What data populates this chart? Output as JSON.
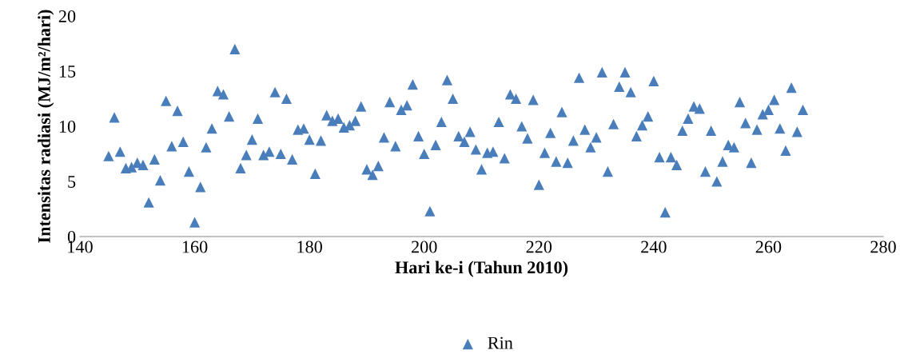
{
  "chart_data": {
    "type": "scatter",
    "xlabel": "Hari ke-i (Tahun 2010)",
    "ylabel": "Intensitas radiasi (MJ/m²/hari)",
    "x": [
      145,
      146,
      147,
      148,
      149,
      150,
      151,
      152,
      153,
      154,
      155,
      156,
      157,
      158,
      159,
      160,
      161,
      162,
      163,
      164,
      165,
      166,
      167,
      168,
      169,
      170,
      171,
      172,
      173,
      174,
      175,
      176,
      177,
      178,
      179,
      180,
      181,
      182,
      183,
      184,
      185,
      186,
      187,
      188,
      189,
      190,
      191,
      192,
      193,
      194,
      195,
      196,
      197,
      198,
      199,
      200,
      201,
      202,
      203,
      204,
      205,
      206,
      207,
      208,
      209,
      210,
      211,
      212,
      213,
      214,
      215,
      216,
      217,
      218,
      219,
      220,
      221,
      222,
      223,
      224,
      225,
      226,
      227,
      228,
      229,
      230,
      231,
      232,
      233,
      234,
      235,
      236,
      237,
      238,
      239,
      240,
      241,
      242,
      243,
      244,
      245,
      246,
      247,
      248,
      249,
      250,
      251,
      252,
      253,
      254,
      255,
      256,
      257,
      258,
      259,
      260,
      261,
      262,
      263,
      264,
      265,
      266
    ],
    "series": [
      {
        "name": "Rin",
        "color": "#4a7ebb",
        "values": [
          7.3,
          10.8,
          7.7,
          6.2,
          6.3,
          6.7,
          6.5,
          3.1,
          7.0,
          5.1,
          12.3,
          8.2,
          11.4,
          8.6,
          5.9,
          1.3,
          4.5,
          8.1,
          9.8,
          13.2,
          12.9,
          10.9,
          17.0,
          6.2,
          7.4,
          8.8,
          10.7,
          7.4,
          7.7,
          13.1,
          7.5,
          12.5,
          7.0,
          9.7,
          9.8,
          8.8,
          5.7,
          8.7,
          11.0,
          10.5,
          10.7,
          9.9,
          10.1,
          10.5,
          11.8,
          6.1,
          5.6,
          6.4,
          9.0,
          12.2,
          8.2,
          11.5,
          11.9,
          13.8,
          9.1,
          7.5,
          2.3,
          8.3,
          10.4,
          14.2,
          12.5,
          9.1,
          8.6,
          9.5,
          7.9,
          6.1,
          7.6,
          7.7,
          10.4,
          7.1,
          12.9,
          12.5,
          10.0,
          8.9,
          12.4,
          4.7,
          7.6,
          9.4,
          6.8,
          11.3,
          6.7,
          8.7,
          14.4,
          9.7,
          8.1,
          9.0,
          14.9,
          5.9,
          10.2,
          13.6,
          14.9,
          13.1,
          9.1,
          10.1,
          10.9,
          14.1,
          7.2,
          2.2,
          7.2,
          6.5,
          9.6,
          10.7,
          11.8,
          11.6,
          5.9,
          9.6,
          5.0,
          6.8,
          8.3,
          8.1,
          12.2,
          10.3,
          6.7,
          9.7,
          11.1,
          11.5,
          12.4,
          9.8,
          7.8,
          13.5,
          9.5,
          11.5
        ]
      }
    ],
    "xlim": [
      140,
      280
    ],
    "xticks": [
      140,
      160,
      180,
      200,
      220,
      240,
      260,
      280
    ],
    "ylim": [
      0,
      20
    ],
    "yticks": [
      0,
      5,
      10,
      15,
      20
    ],
    "marker": "triangle",
    "legend": "bottom",
    "grid": false
  }
}
